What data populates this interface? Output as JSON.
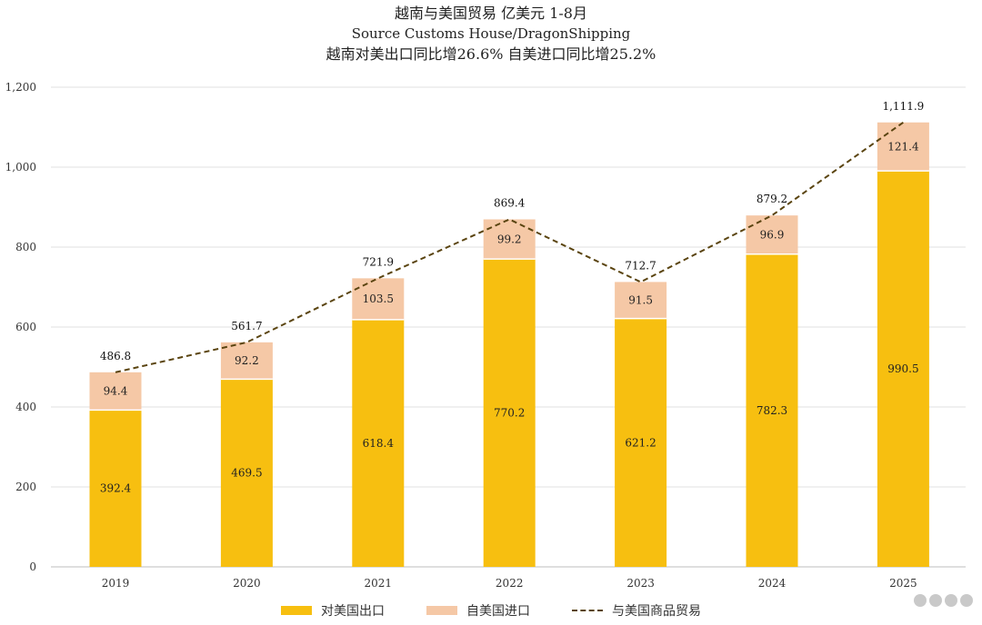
{
  "titles": {
    "line1": "越南与美国贸易 亿美元 1-8月",
    "line2": "Source Customs House/DragonShipping",
    "line3": "越南对美出口同比增26.6% 自美进口同比增25.2%"
  },
  "legend": {
    "exports": "对美国出口",
    "imports": "自美国进口",
    "total": "与美国商品贸易"
  },
  "colors": {
    "exports": "#f7bf10",
    "imports": "#f5c8a6",
    "total_line": "#5a4410",
    "grid": "#e2e2e2"
  },
  "chart_data": {
    "type": "bar",
    "stacked": true,
    "categories": [
      "2019",
      "2020",
      "2021",
      "2022",
      "2023",
      "2024",
      "2025"
    ],
    "series": [
      {
        "name": "对美国出口",
        "values": [
          392.4,
          469.5,
          618.4,
          770.2,
          621.2,
          782.3,
          990.5
        ],
        "labels": [
          "392.4",
          "469.5",
          "618.4",
          "770.2",
          "621.2",
          "782.3",
          "990.5"
        ]
      },
      {
        "name": "自美国进口",
        "values": [
          94.4,
          92.2,
          103.5,
          99.2,
          91.5,
          96.9,
          121.4
        ],
        "labels": [
          "94.4",
          "92.2",
          "103.5",
          "99.2",
          "91.5",
          "96.9",
          "121.4"
        ]
      },
      {
        "name": "与美国商品贸易",
        "type": "line",
        "values": [
          486.8,
          561.7,
          721.9,
          869.4,
          712.7,
          879.2,
          1111.9
        ],
        "labels": [
          "486.8",
          "561.7",
          "721.9",
          "869.4",
          "712.7",
          "879.2",
          "1,111.9"
        ]
      }
    ],
    "ylim": [
      0,
      1200
    ],
    "yticks": [
      0,
      200,
      400,
      600,
      800,
      1000,
      1200
    ],
    "ytick_labels": [
      "0",
      "200",
      "400",
      "600",
      "800",
      "1,000",
      "1,200"
    ],
    "grid": true,
    "legend_position": "bottom"
  }
}
